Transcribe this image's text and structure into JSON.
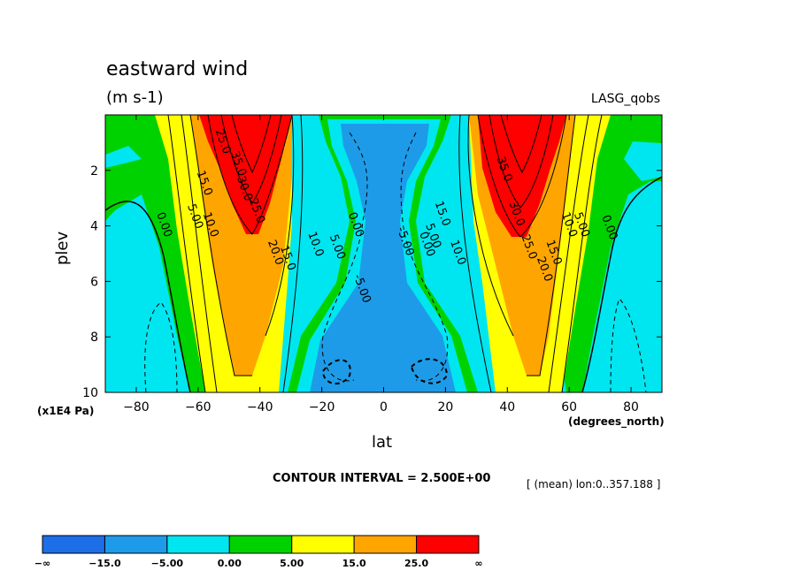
{
  "header": {
    "title": "eastward wind",
    "units": "(m s-1)",
    "source": "LASG_qobs"
  },
  "footer": {
    "contour_interval": "CONTOUR INTERVAL = 2.500E+00",
    "mean_info": "[ (mean) lon:0..357.188 ]"
  },
  "chart_data": {
    "type": "heatmap",
    "title": "eastward wind",
    "subtitle": "(m s-1)",
    "xlabel": "lat",
    "x_units": "(degrees_north)",
    "ylabel": "plev",
    "y_units": "(x1E4 Pa)",
    "xlim": [
      -90,
      90
    ],
    "ylim": [
      0,
      10
    ],
    "y_reversed": true,
    "x_ticks": [
      -80,
      -60,
      -40,
      -20,
      0,
      20,
      40,
      60,
      80
    ],
    "x_tick_labels": [
      "−80",
      "−60",
      "−40",
      "−20",
      "0",
      "20",
      "40",
      "60",
      "80"
    ],
    "y_ticks": [
      2,
      4,
      6,
      8,
      10
    ],
    "y_tick_labels": [
      "2",
      "4",
      "6",
      "8",
      "10"
    ],
    "contour_interval": 2.5,
    "description_free_values": {
      "jet_core_sh": {
        "lat": -45,
        "plev": 0.5,
        "value_min": 35
      },
      "jet_core_nh": {
        "lat": 45,
        "plev": 0.5,
        "value_min": 35
      },
      "equatorial_easterly_min": -5
    },
    "contour_labels": [
      {
        "text": "25.0",
        "lat": -53,
        "plev": 1.0
      },
      {
        "text": "35.0",
        "lat": -48,
        "plev": 1.8
      },
      {
        "text": "15.0",
        "lat": -59,
        "plev": 2.5
      },
      {
        "text": "30.0",
        "lat": -46,
        "plev": 2.7
      },
      {
        "text": "25.0",
        "lat": -42,
        "plev": 3.5
      },
      {
        "text": "0.00",
        "lat": -72,
        "plev": 4.0
      },
      {
        "text": "5.00",
        "lat": -62,
        "plev": 3.7
      },
      {
        "text": "10.0",
        "lat": -57,
        "plev": 4.0
      },
      {
        "text": "20.0",
        "lat": -36,
        "plev": 5.0
      },
      {
        "text": "15.0",
        "lat": -32,
        "plev": 5.2
      },
      {
        "text": "10.0",
        "lat": -23,
        "plev": 4.7
      },
      {
        "text": "5.00",
        "lat": -16,
        "plev": 4.8
      },
      {
        "text": "0.00",
        "lat": -10,
        "plev": 4.0
      },
      {
        "text": "-5.00",
        "lat": -8,
        "plev": 6.3
      },
      {
        "text": "-5.00",
        "lat": 6,
        "plev": 4.6
      },
      {
        "text": "5.00",
        "lat": 15,
        "plev": 4.4
      },
      {
        "text": "0.00",
        "lat": 13,
        "plev": 4.7
      },
      {
        "text": "10.0",
        "lat": 23,
        "plev": 5.0
      },
      {
        "text": "15.0",
        "lat": 18,
        "plev": 3.6
      },
      {
        "text": "35.0",
        "lat": 38,
        "plev": 2.0
      },
      {
        "text": "30.0",
        "lat": 42,
        "plev": 3.6
      },
      {
        "text": "25.0",
        "lat": 46,
        "plev": 4.8
      },
      {
        "text": "20.0",
        "lat": 51,
        "plev": 5.6
      },
      {
        "text": "15.0",
        "lat": 54,
        "plev": 5.0
      },
      {
        "text": "10.0",
        "lat": 59,
        "plev": 4.0
      },
      {
        "text": "5.00",
        "lat": 63,
        "plev": 4.0
      },
      {
        "text": "0.00",
        "lat": 72,
        "plev": 4.1
      }
    ],
    "colorbar": {
      "boundaries": [
        "−∞",
        "−15.0",
        "−5.00",
        "0.00",
        "5.00",
        "15.0",
        "25.0",
        "∞"
      ],
      "colors": [
        "#1e6ee8",
        "#1e9be8",
        "#00e6f0",
        "#00d200",
        "#ffff00",
        "#ffa500",
        "#ff0000"
      ]
    }
  }
}
